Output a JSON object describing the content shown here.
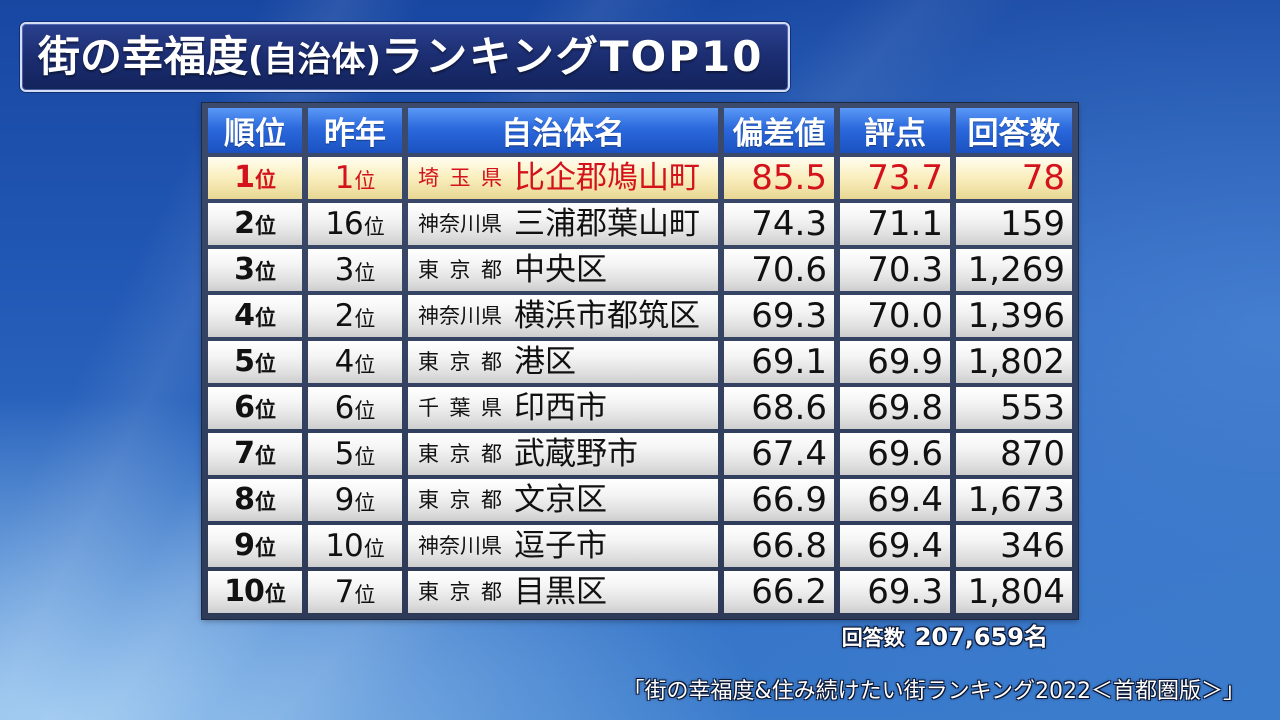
{
  "colors": {
    "title_bg": "#1c2e72",
    "header_bg": "#2b69dd",
    "cell_text": "#111111",
    "highlight_bg": "#fbf0c2",
    "highlight_text": "#d3121c"
  },
  "chart_data": {
    "type": "table",
    "title": {
      "lead": "街の幸福度",
      "paren": "(自治体)",
      "tail": "ランキングTOP10"
    },
    "columns": {
      "rank": "順位",
      "last_year": "昨年",
      "municipality": "自治体名",
      "deviation": "偏差値",
      "score": "評点",
      "responses": "回答数"
    },
    "rank_suffix": "位",
    "rows": [
      {
        "rank": "1",
        "last_year": "1",
        "prefecture": "埼玉県",
        "municipality": "比企郡鳩山町",
        "deviation": "85.5",
        "score": "73.7",
        "responses": "78",
        "highlight": true
      },
      {
        "rank": "2",
        "last_year": "16",
        "prefecture": "神奈川県",
        "municipality": "三浦郡葉山町",
        "deviation": "74.3",
        "score": "71.1",
        "responses": "159"
      },
      {
        "rank": "3",
        "last_year": "3",
        "prefecture": "東京都",
        "municipality": "中央区",
        "deviation": "70.6",
        "score": "70.3",
        "responses": "1,269"
      },
      {
        "rank": "4",
        "last_year": "2",
        "prefecture": "神奈川県",
        "municipality": "横浜市都筑区",
        "deviation": "69.3",
        "score": "70.0",
        "responses": "1,396"
      },
      {
        "rank": "5",
        "last_year": "4",
        "prefecture": "東京都",
        "municipality": "港区",
        "deviation": "69.1",
        "score": "69.9",
        "responses": "1,802"
      },
      {
        "rank": "6",
        "last_year": "6",
        "prefecture": "千葉県",
        "municipality": "印西市",
        "deviation": "68.6",
        "score": "69.8",
        "responses": "553"
      },
      {
        "rank": "7",
        "last_year": "5",
        "prefecture": "東京都",
        "municipality": "武蔵野市",
        "deviation": "67.4",
        "score": "69.6",
        "responses": "870"
      },
      {
        "rank": "8",
        "last_year": "9",
        "prefecture": "東京都",
        "municipality": "文京区",
        "deviation": "66.9",
        "score": "69.4",
        "responses": "1,673"
      },
      {
        "rank": "9",
        "last_year": "10",
        "prefecture": "神奈川県",
        "municipality": "逗子市",
        "deviation": "66.8",
        "score": "69.4",
        "responses": "346"
      },
      {
        "rank": "10",
        "last_year": "7",
        "prefecture": "東京都",
        "municipality": "目黒区",
        "deviation": "66.2",
        "score": "69.3",
        "responses": "1,804"
      }
    ],
    "total_responses": {
      "label": "回答数",
      "value": "207,659名"
    },
    "source": "「街の幸福度&住み続けたい街ランキング2022＜首都圏版＞」"
  }
}
